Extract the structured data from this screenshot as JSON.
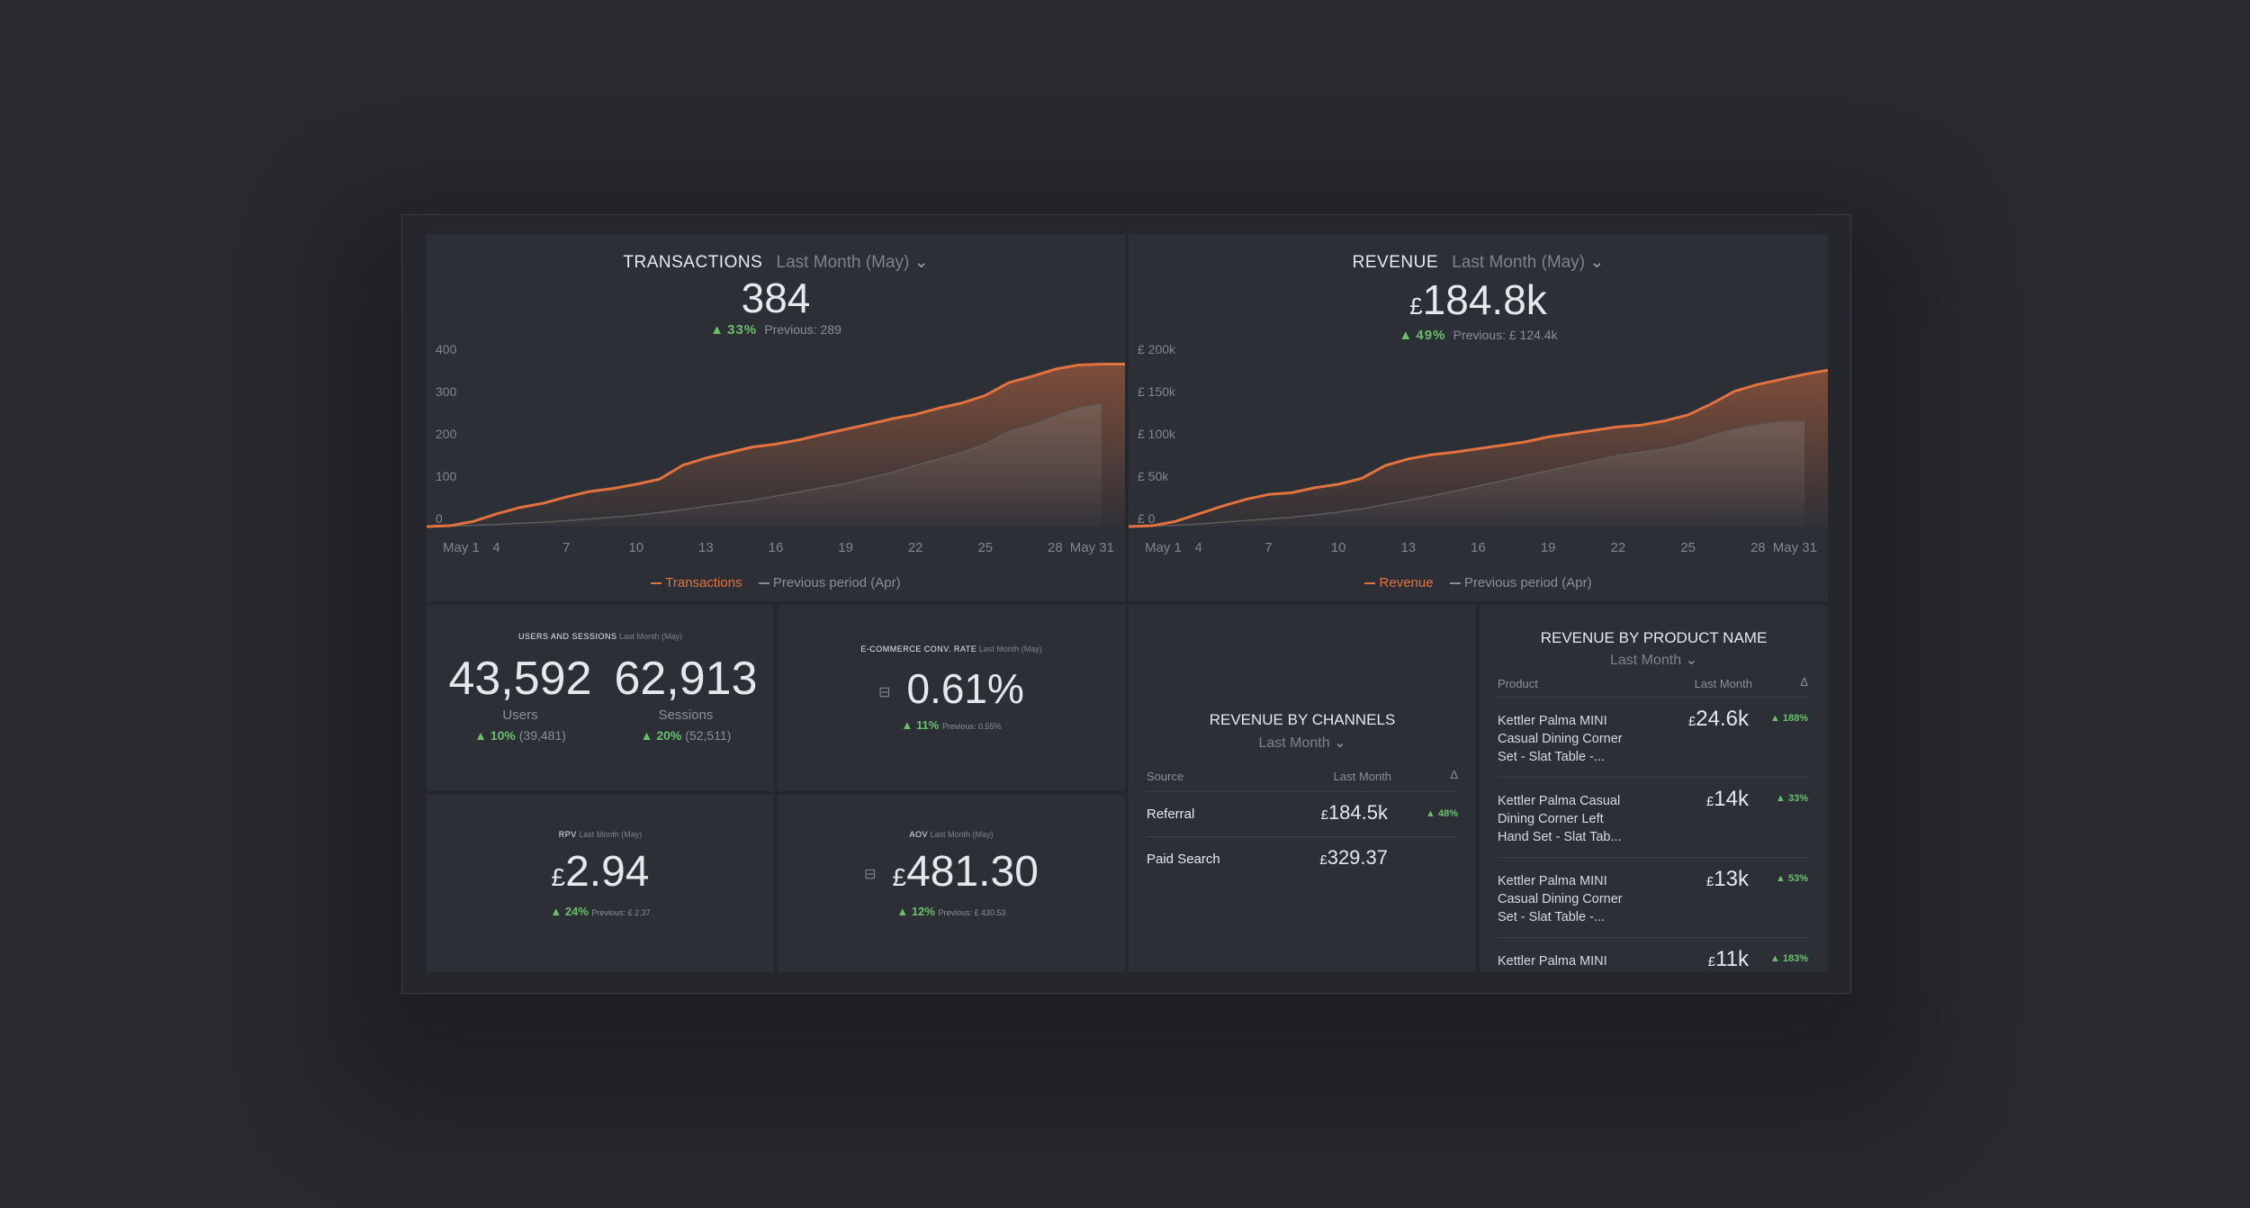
{
  "colors": {
    "accent": "#e2733f",
    "prev": "#6d6f75",
    "positive": "#6bbf6b"
  },
  "transactions": {
    "title": "TRANSACTIONS",
    "period": "Last Month (May)",
    "value": "384",
    "change": "33%",
    "previous": "Previous: 289",
    "legend_current": "Transactions",
    "legend_previous": "Previous period (Apr)"
  },
  "revenue": {
    "title": "REVENUE",
    "period": "Last Month (May)",
    "currency": "£",
    "value": "184.8k",
    "change": "49%",
    "previous": "Previous: £ 124.4k",
    "legend_current": "Revenue",
    "legend_previous": "Previous period (Apr)"
  },
  "users_sessions": {
    "title": "USERS AND SESSIONS",
    "period": "Last Month (May)",
    "users_value": "43,592",
    "users_label": "Users",
    "users_change": "10%",
    "users_prev": "(39,481)",
    "sessions_value": "62,913",
    "sessions_label": "Sessions",
    "sessions_change": "20%",
    "sessions_prev": "(52,511)"
  },
  "conv_rate": {
    "title": "E-COMMERCE CONV. RATE",
    "period": "Last Month (May)",
    "value": "0.61%",
    "change": "11%",
    "previous": "Previous: 0.55%"
  },
  "rpv": {
    "title": "RPV",
    "period": "Last Month (May)",
    "currency": "£",
    "value": "2.94",
    "change": "24%",
    "previous": "Previous: £ 2.37"
  },
  "aov": {
    "title": "AOV",
    "period": "Last Month (May)",
    "currency": "£",
    "value": "481.30",
    "change": "12%",
    "previous": "Previous: £ 430.53"
  },
  "channels": {
    "title": "REVENUE BY CHANNELS",
    "period": "Last Month",
    "headers": {
      "source": "Source",
      "period": "Last Month",
      "delta": "Δ"
    },
    "rows": [
      {
        "source": "Referral",
        "currency": "£",
        "value": "184.5k",
        "change": "48%"
      },
      {
        "source": "Paid Search",
        "currency": "£",
        "value": "329.37",
        "change": ""
      }
    ]
  },
  "products": {
    "title": "REVENUE BY PRODUCT NAME",
    "period": "Last Month",
    "headers": {
      "product": "Product",
      "period": "Last Month",
      "delta": "Δ"
    },
    "rows": [
      {
        "line1": "Kettler Palma MINI",
        "line2": "Casual Dining Corner",
        "line3": "Set - Slat Table -...",
        "currency": "£",
        "value": "24.6k",
        "change": "188%"
      },
      {
        "line1": "Kettler Palma Casual",
        "line2": "Dining Corner Left",
        "line3": "Hand Set - Slat Tab...",
        "currency": "£",
        "value": "14k",
        "change": "33%"
      },
      {
        "line1": "Kettler Palma MINI",
        "line2": "Casual Dining Corner",
        "line3": "Set - Slat Table -...",
        "currency": "£",
        "value": "13k",
        "change": "53%"
      },
      {
        "line1": "Kettler Palma MINI",
        "line2": "",
        "line3": "",
        "currency": "£",
        "value": "11k",
        "change": "183%"
      }
    ]
  },
  "chart_data": [
    {
      "type": "area",
      "name": "transactions",
      "x_ticks": [
        "May 1",
        "4",
        "7",
        "10",
        "13",
        "16",
        "19",
        "22",
        "25",
        "28",
        "May 31"
      ],
      "y_ticks": [
        "400",
        "300",
        "200",
        "100",
        "0"
      ],
      "ylim": [
        0,
        400
      ],
      "x": [
        1,
        2,
        3,
        4,
        5,
        6,
        7,
        8,
        9,
        10,
        11,
        12,
        13,
        14,
        15,
        16,
        17,
        18,
        19,
        20,
        21,
        22,
        23,
        24,
        25,
        26,
        27,
        28,
        29,
        30,
        31
      ],
      "series": [
        {
          "name": "Transactions",
          "values": [
            0,
            2,
            12,
            30,
            45,
            55,
            70,
            83,
            90,
            100,
            112,
            145,
            162,
            175,
            188,
            195,
            205,
            218,
            230,
            242,
            255,
            265,
            280,
            292,
            310,
            340,
            355,
            372,
            382,
            384,
            384
          ]
        },
        {
          "name": "Previous period (Apr)",
          "values": [
            0,
            1,
            3,
            5,
            8,
            10,
            14,
            18,
            22,
            27,
            33,
            40,
            48,
            55,
            62,
            72,
            82,
            92,
            102,
            115,
            128,
            145,
            160,
            175,
            195,
            225,
            240,
            262,
            280,
            289,
            null
          ]
        }
      ]
    },
    {
      "type": "area",
      "name": "revenue",
      "x_ticks": [
        "May 1",
        "4",
        "7",
        "10",
        "13",
        "16",
        "19",
        "22",
        "25",
        "28",
        "May 31"
      ],
      "y_ticks": [
        "£ 200k",
        "£ 150k",
        "£ 100k",
        "£ 50k",
        "£ 0"
      ],
      "ylim": [
        0,
        200000
      ],
      "x": [
        1,
        2,
        3,
        4,
        5,
        6,
        7,
        8,
        9,
        10,
        11,
        12,
        13,
        14,
        15,
        16,
        17,
        18,
        19,
        20,
        21,
        22,
        23,
        24,
        25,
        26,
        27,
        28,
        29,
        30,
        31
      ],
      "series": [
        {
          "name": "Revenue",
          "values": [
            0,
            1000,
            6000,
            15000,
            24000,
            32000,
            38000,
            40000,
            46000,
            50000,
            57000,
            72000,
            80000,
            85000,
            88000,
            92000,
            96000,
            100000,
            106000,
            110000,
            114000,
            118000,
            120000,
            125000,
            132000,
            145000,
            160000,
            168000,
            174000,
            180000,
            184800
          ]
        },
        {
          "name": "Previous period (Apr)",
          "values": [
            0,
            500,
            1500,
            3000,
            5000,
            7000,
            9000,
            11000,
            14000,
            17000,
            21000,
            26000,
            31000,
            36000,
            42000,
            48000,
            54000,
            60000,
            66000,
            72000,
            78000,
            84000,
            88000,
            92000,
            98000,
            108000,
            115000,
            120000,
            124000,
            124400,
            null
          ]
        }
      ]
    }
  ]
}
